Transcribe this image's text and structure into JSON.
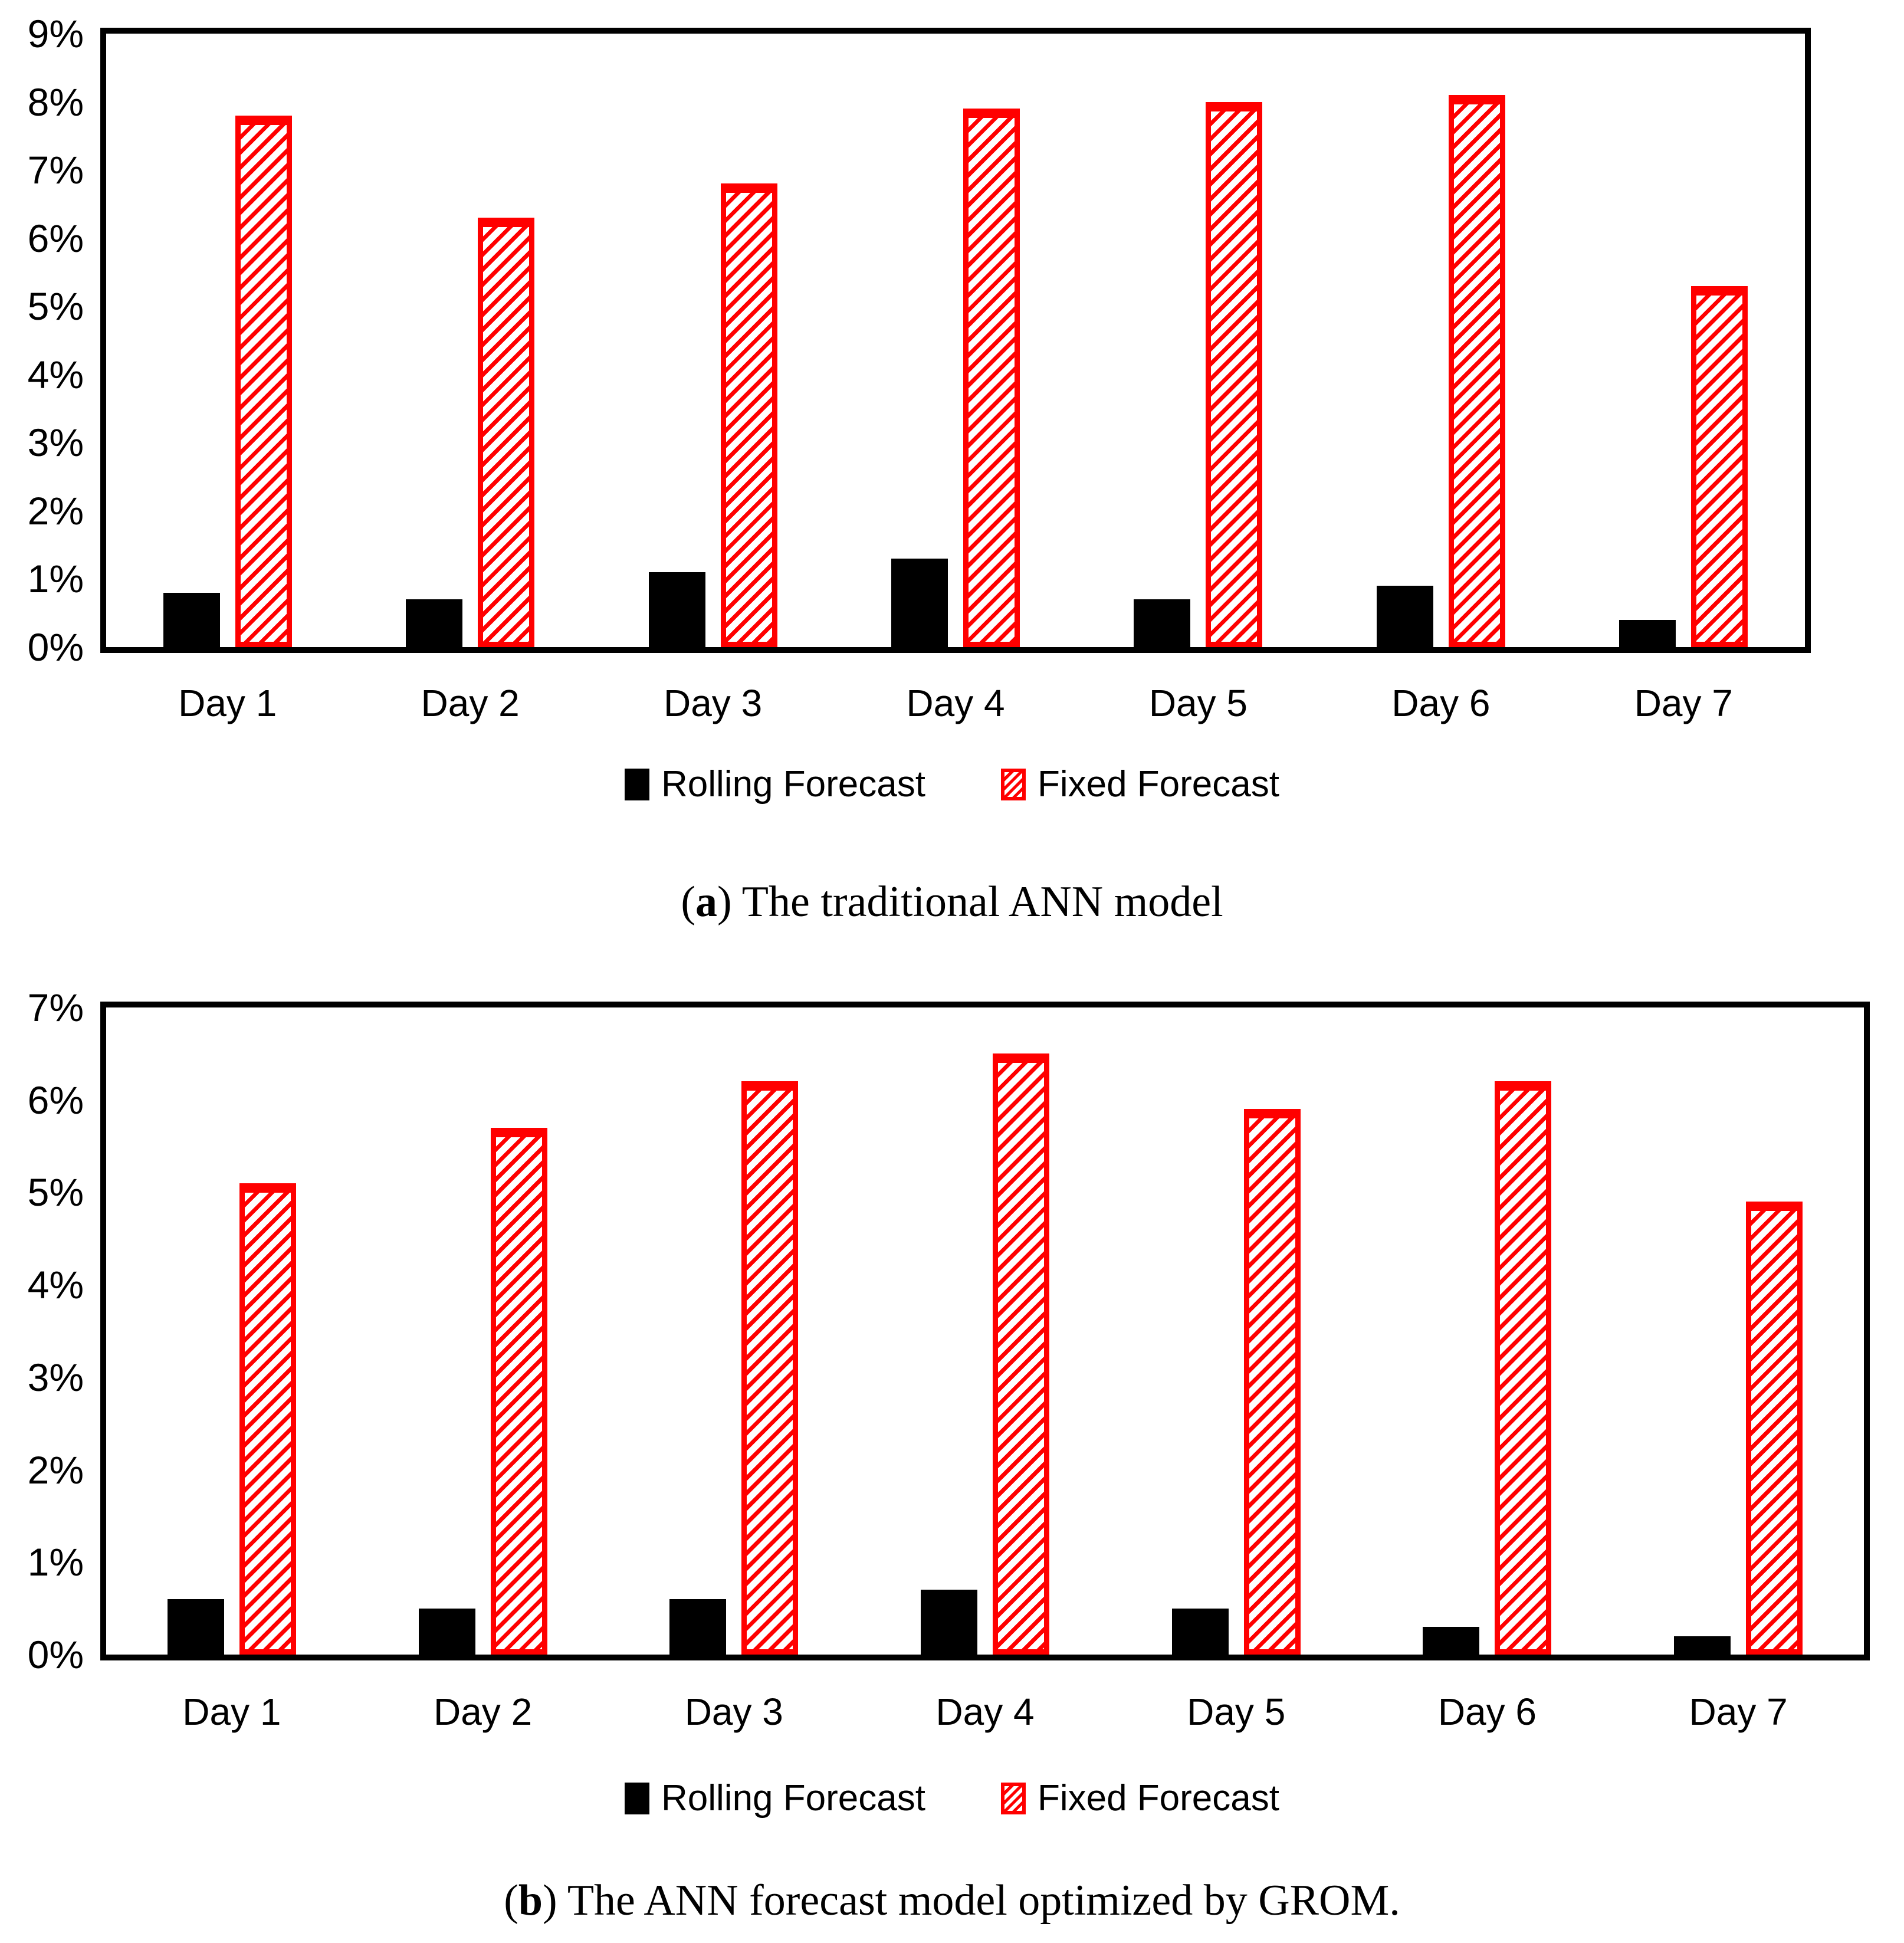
{
  "figure": {
    "background": "#ffffff"
  },
  "colors": {
    "rolling_black": "#000000",
    "fixed_red": "#ff0000",
    "axis": "#000000"
  },
  "chart_data": [
    {
      "id": "a",
      "type": "bar",
      "caption": {
        "open_paren": "(",
        "letter": "a",
        "close_paren": ") ",
        "text": "The traditional ANN model"
      },
      "categories": [
        "Day 1",
        "Day 2",
        "Day 3",
        "Day 4",
        "Day 5",
        "Day 6",
        "Day 7"
      ],
      "series": [
        {
          "name": "Rolling Forecast",
          "style": "solid-black",
          "values": [
            0.8,
            0.7,
            1.1,
            1.3,
            0.7,
            0.9,
            0.4
          ]
        },
        {
          "name": "Fixed Forecast",
          "style": "hatched-red",
          "values": [
            7.8,
            6.3,
            6.8,
            7.9,
            8.0,
            8.1,
            5.3
          ]
        }
      ],
      "unit": "%",
      "ylim": [
        0,
        9
      ],
      "ytick_step": 1,
      "yticks": [
        "0%",
        "1%",
        "2%",
        "3%",
        "4%",
        "5%",
        "6%",
        "7%",
        "8%",
        "9%"
      ],
      "grid": false,
      "legend_position": "bottom"
    },
    {
      "id": "b",
      "type": "bar",
      "caption": {
        "open_paren": "(",
        "letter": "b",
        "close_paren": ") ",
        "text": "The ANN forecast model optimized by GROM."
      },
      "categories": [
        "Day 1",
        "Day 2",
        "Day 3",
        "Day 4",
        "Day 5",
        "Day 6",
        "Day 7"
      ],
      "series": [
        {
          "name": "Rolling Forecast",
          "style": "solid-black",
          "values": [
            0.6,
            0.5,
            0.6,
            0.7,
            0.5,
            0.3,
            0.2
          ]
        },
        {
          "name": "Fixed Forecast",
          "style": "hatched-red",
          "values": [
            5.1,
            5.7,
            6.2,
            6.5,
            5.9,
            6.2,
            4.9
          ]
        }
      ],
      "unit": "%",
      "ylim": [
        0,
        7
      ],
      "ytick_step": 1,
      "yticks": [
        "0%",
        "1%",
        "2%",
        "3%",
        "4%",
        "5%",
        "6%",
        "7%"
      ],
      "grid": false,
      "legend_position": "bottom"
    }
  ]
}
